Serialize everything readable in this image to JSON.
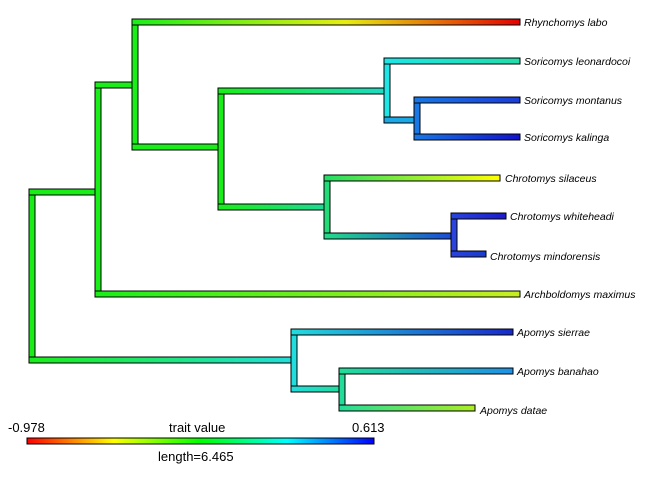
{
  "taxa": [
    {
      "name": "Rhynchomys labo"
    },
    {
      "name": "Soricomys leonardocoi"
    },
    {
      "name": "Soricomys montanus"
    },
    {
      "name": "Soricomys kalinga"
    },
    {
      "name": "Chrotomys silaceus"
    },
    {
      "name": "Chrotomys whiteheadi"
    },
    {
      "name": "Chrotomys mindorensis"
    },
    {
      "name": "Archboldomys maximus"
    },
    {
      "name": "Apomys sierrae"
    },
    {
      "name": "Apomys banahao"
    },
    {
      "name": "Apomys datae"
    }
  ],
  "legend": {
    "min_label": "-0.978",
    "max_label": "0.613",
    "title": "trait value",
    "length_label": "length=6.465",
    "colors": [
      "#ff0000",
      "#ffff00",
      "#00ff00",
      "#00ffff",
      "#0000ff"
    ]
  }
}
